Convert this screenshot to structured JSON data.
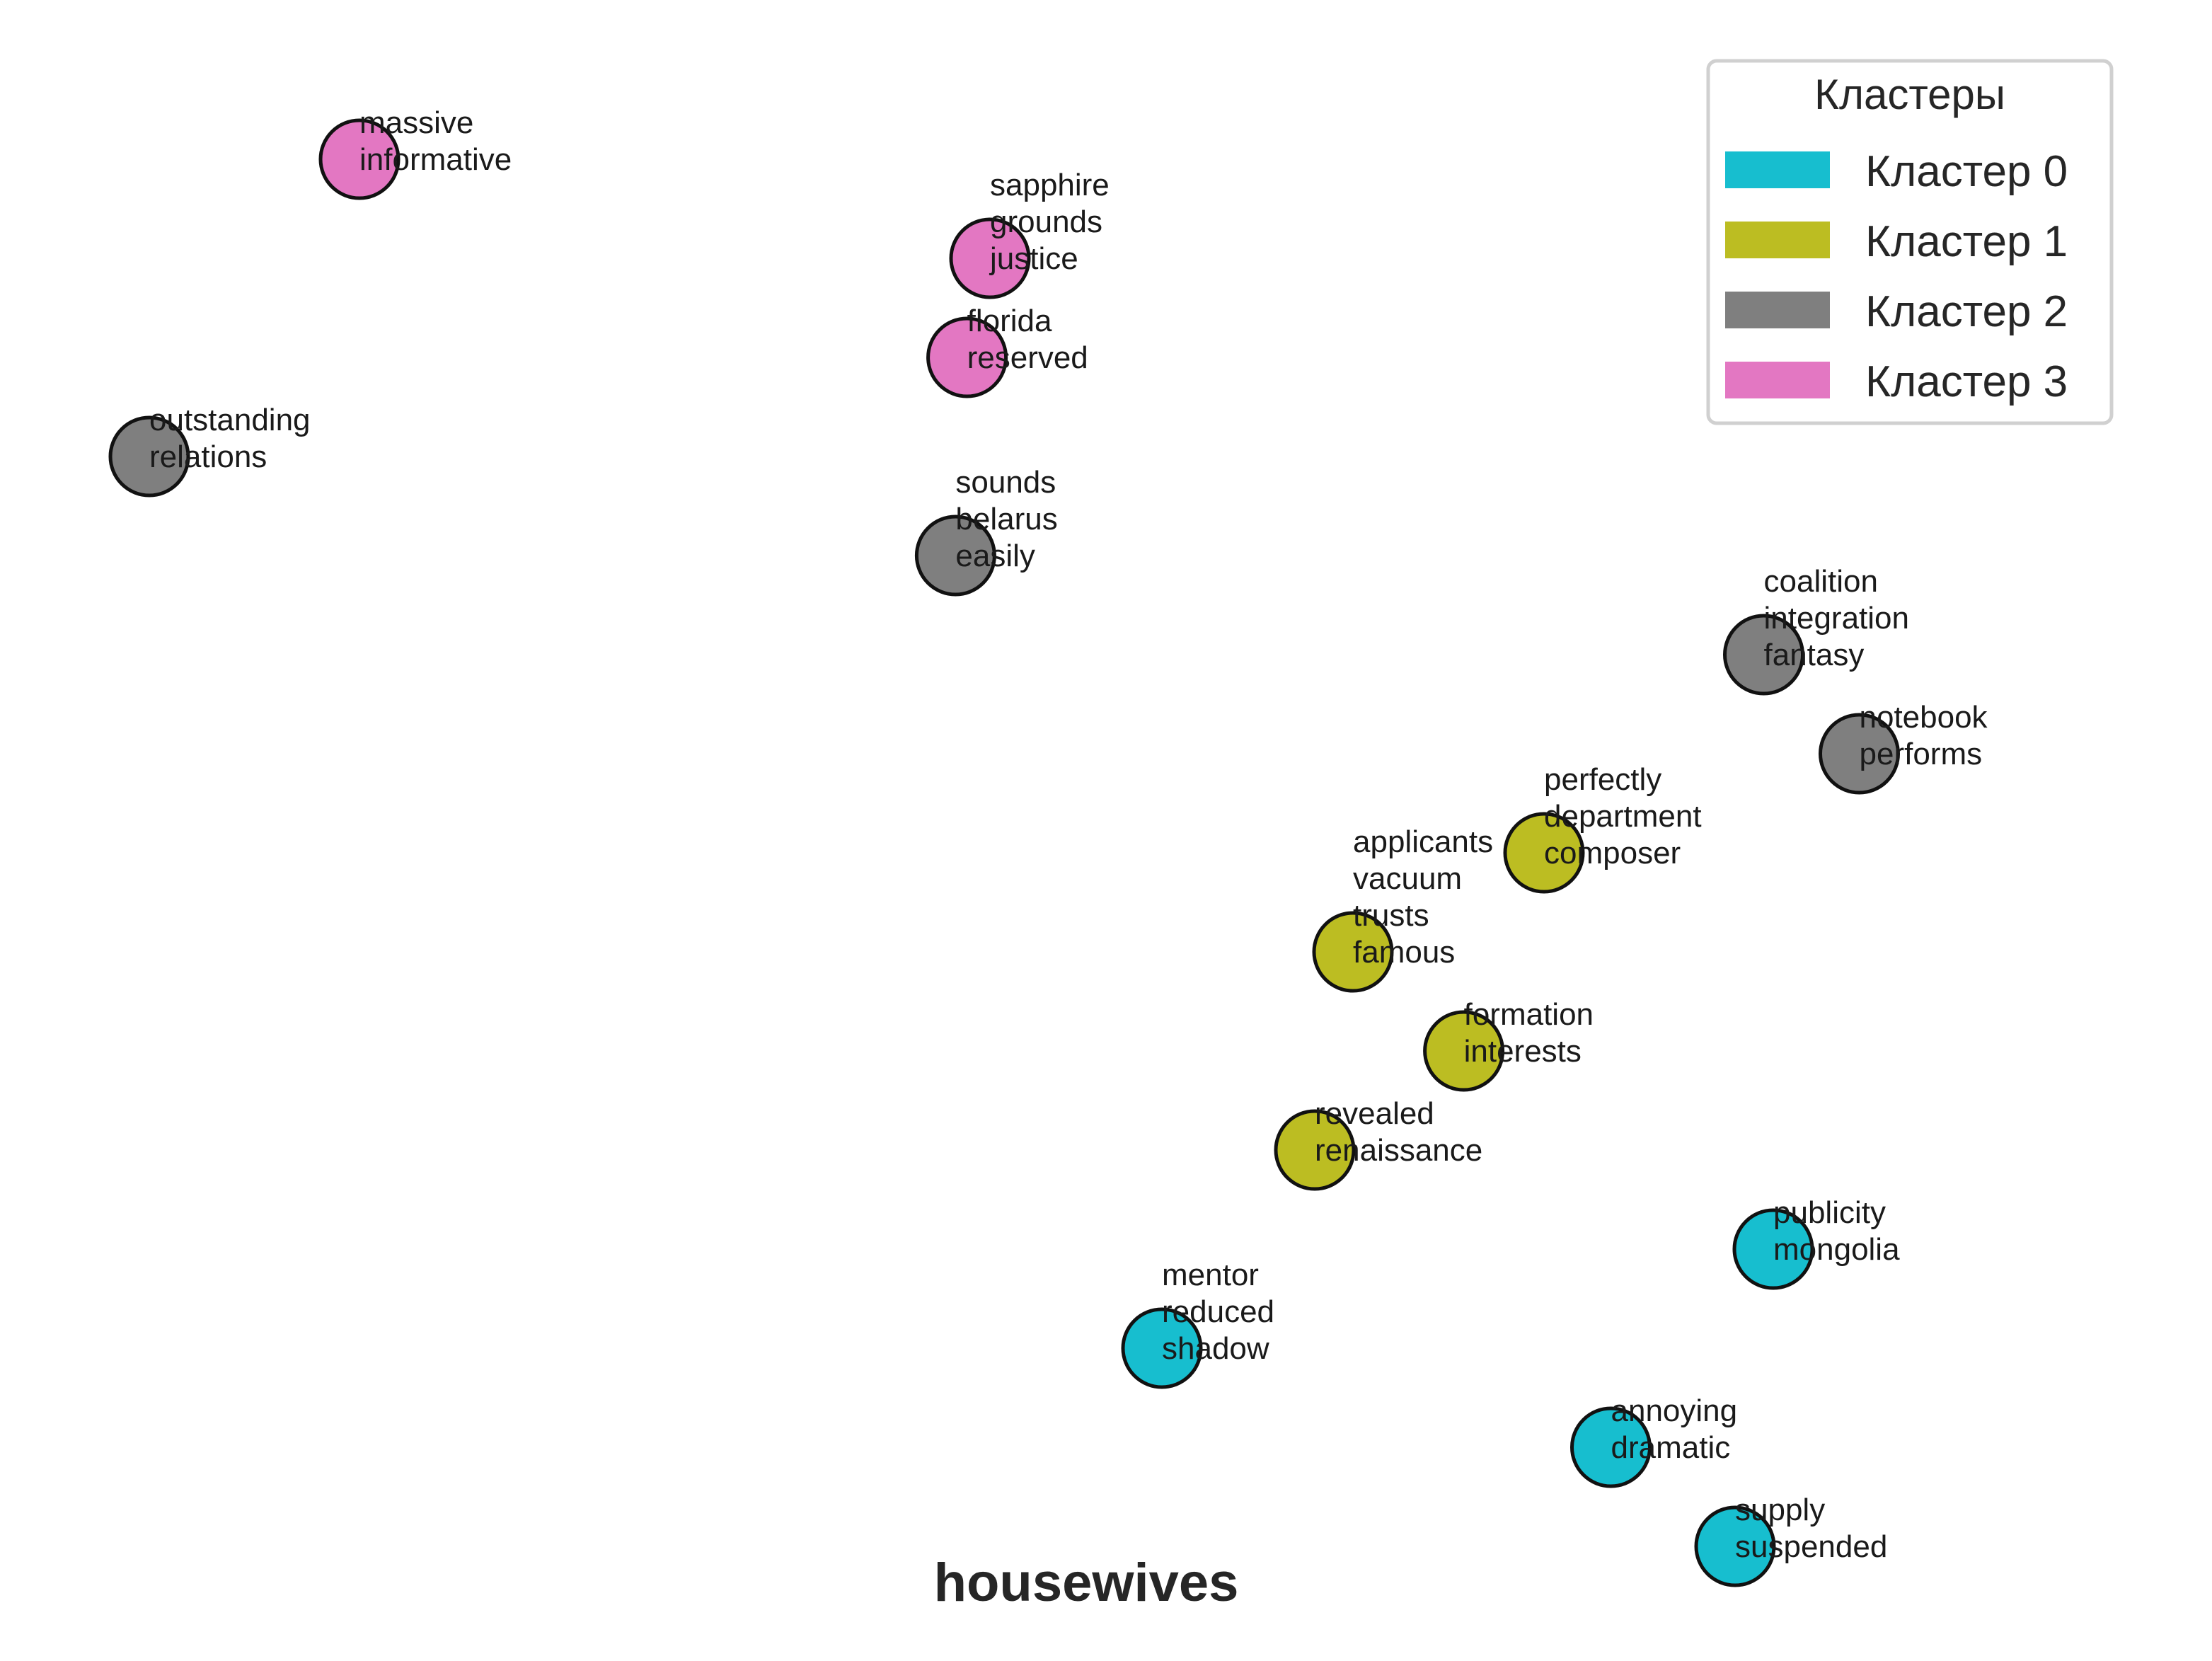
{
  "chart_data": {
    "type": "scatter",
    "title": "housewives",
    "xlim": [
      0,
      100
    ],
    "ylim": [
      0,
      100
    ],
    "grid": false,
    "axes_visible": false,
    "legend": {
      "title": "Кластеры",
      "placement": "top-right",
      "entries": [
        {
          "label": "Кластер 0",
          "color": "#17becf"
        },
        {
          "label": "Кластер 1",
          "color": "#bcbd22"
        },
        {
          "label": "Кластер 2",
          "color": "#7f7f7f"
        },
        {
          "label": "Кластер 3",
          "color": "#e377c2"
        }
      ]
    },
    "points": [
      {
        "x": 12.0,
        "y": 96.0,
        "cluster": 3,
        "words": [
          "massive",
          "informative"
        ]
      },
      {
        "x": 45.0,
        "y": 89.0,
        "cluster": 3,
        "words": [
          "sapphire",
          "grounds",
          "justice"
        ]
      },
      {
        "x": 43.8,
        "y": 82.0,
        "cluster": 3,
        "words": [
          "florida",
          "reserved"
        ]
      },
      {
        "x": 1.0,
        "y": 75.0,
        "cluster": 2,
        "words": [
          "outstanding",
          "relations"
        ]
      },
      {
        "x": 43.2,
        "y": 68.0,
        "cluster": 2,
        "words": [
          "sounds",
          "belarus",
          "easily"
        ]
      },
      {
        "x": 85.5,
        "y": 61.0,
        "cluster": 2,
        "words": [
          "coalition",
          "integration",
          "fantasy"
        ]
      },
      {
        "x": 90.5,
        "y": 54.0,
        "cluster": 2,
        "words": [
          "notebook",
          "performs"
        ]
      },
      {
        "x": 74.0,
        "y": 47.0,
        "cluster": 1,
        "words": [
          "perfectly",
          "department",
          "composer"
        ]
      },
      {
        "x": 64.0,
        "y": 40.0,
        "cluster": 1,
        "words": [
          "applicants",
          "vacuum",
          "trusts",
          "famous"
        ]
      },
      {
        "x": 69.8,
        "y": 33.0,
        "cluster": 1,
        "words": [
          "formation",
          "interests"
        ]
      },
      {
        "x": 62.0,
        "y": 26.0,
        "cluster": 1,
        "words": [
          "revealed",
          "renaissance"
        ]
      },
      {
        "x": 86.0,
        "y": 19.0,
        "cluster": 0,
        "words": [
          "publicity",
          "mongolia"
        ]
      },
      {
        "x": 54.0,
        "y": 12.0,
        "cluster": 0,
        "words": [
          "mentor",
          "reduced",
          "shadow"
        ]
      },
      {
        "x": 77.5,
        "y": 5.0,
        "cluster": 0,
        "words": [
          "annoying",
          "dramatic"
        ]
      },
      {
        "x": 84.0,
        "y": -2.0,
        "cluster": 0,
        "words": [
          "supply",
          "suspended"
        ]
      }
    ]
  }
}
